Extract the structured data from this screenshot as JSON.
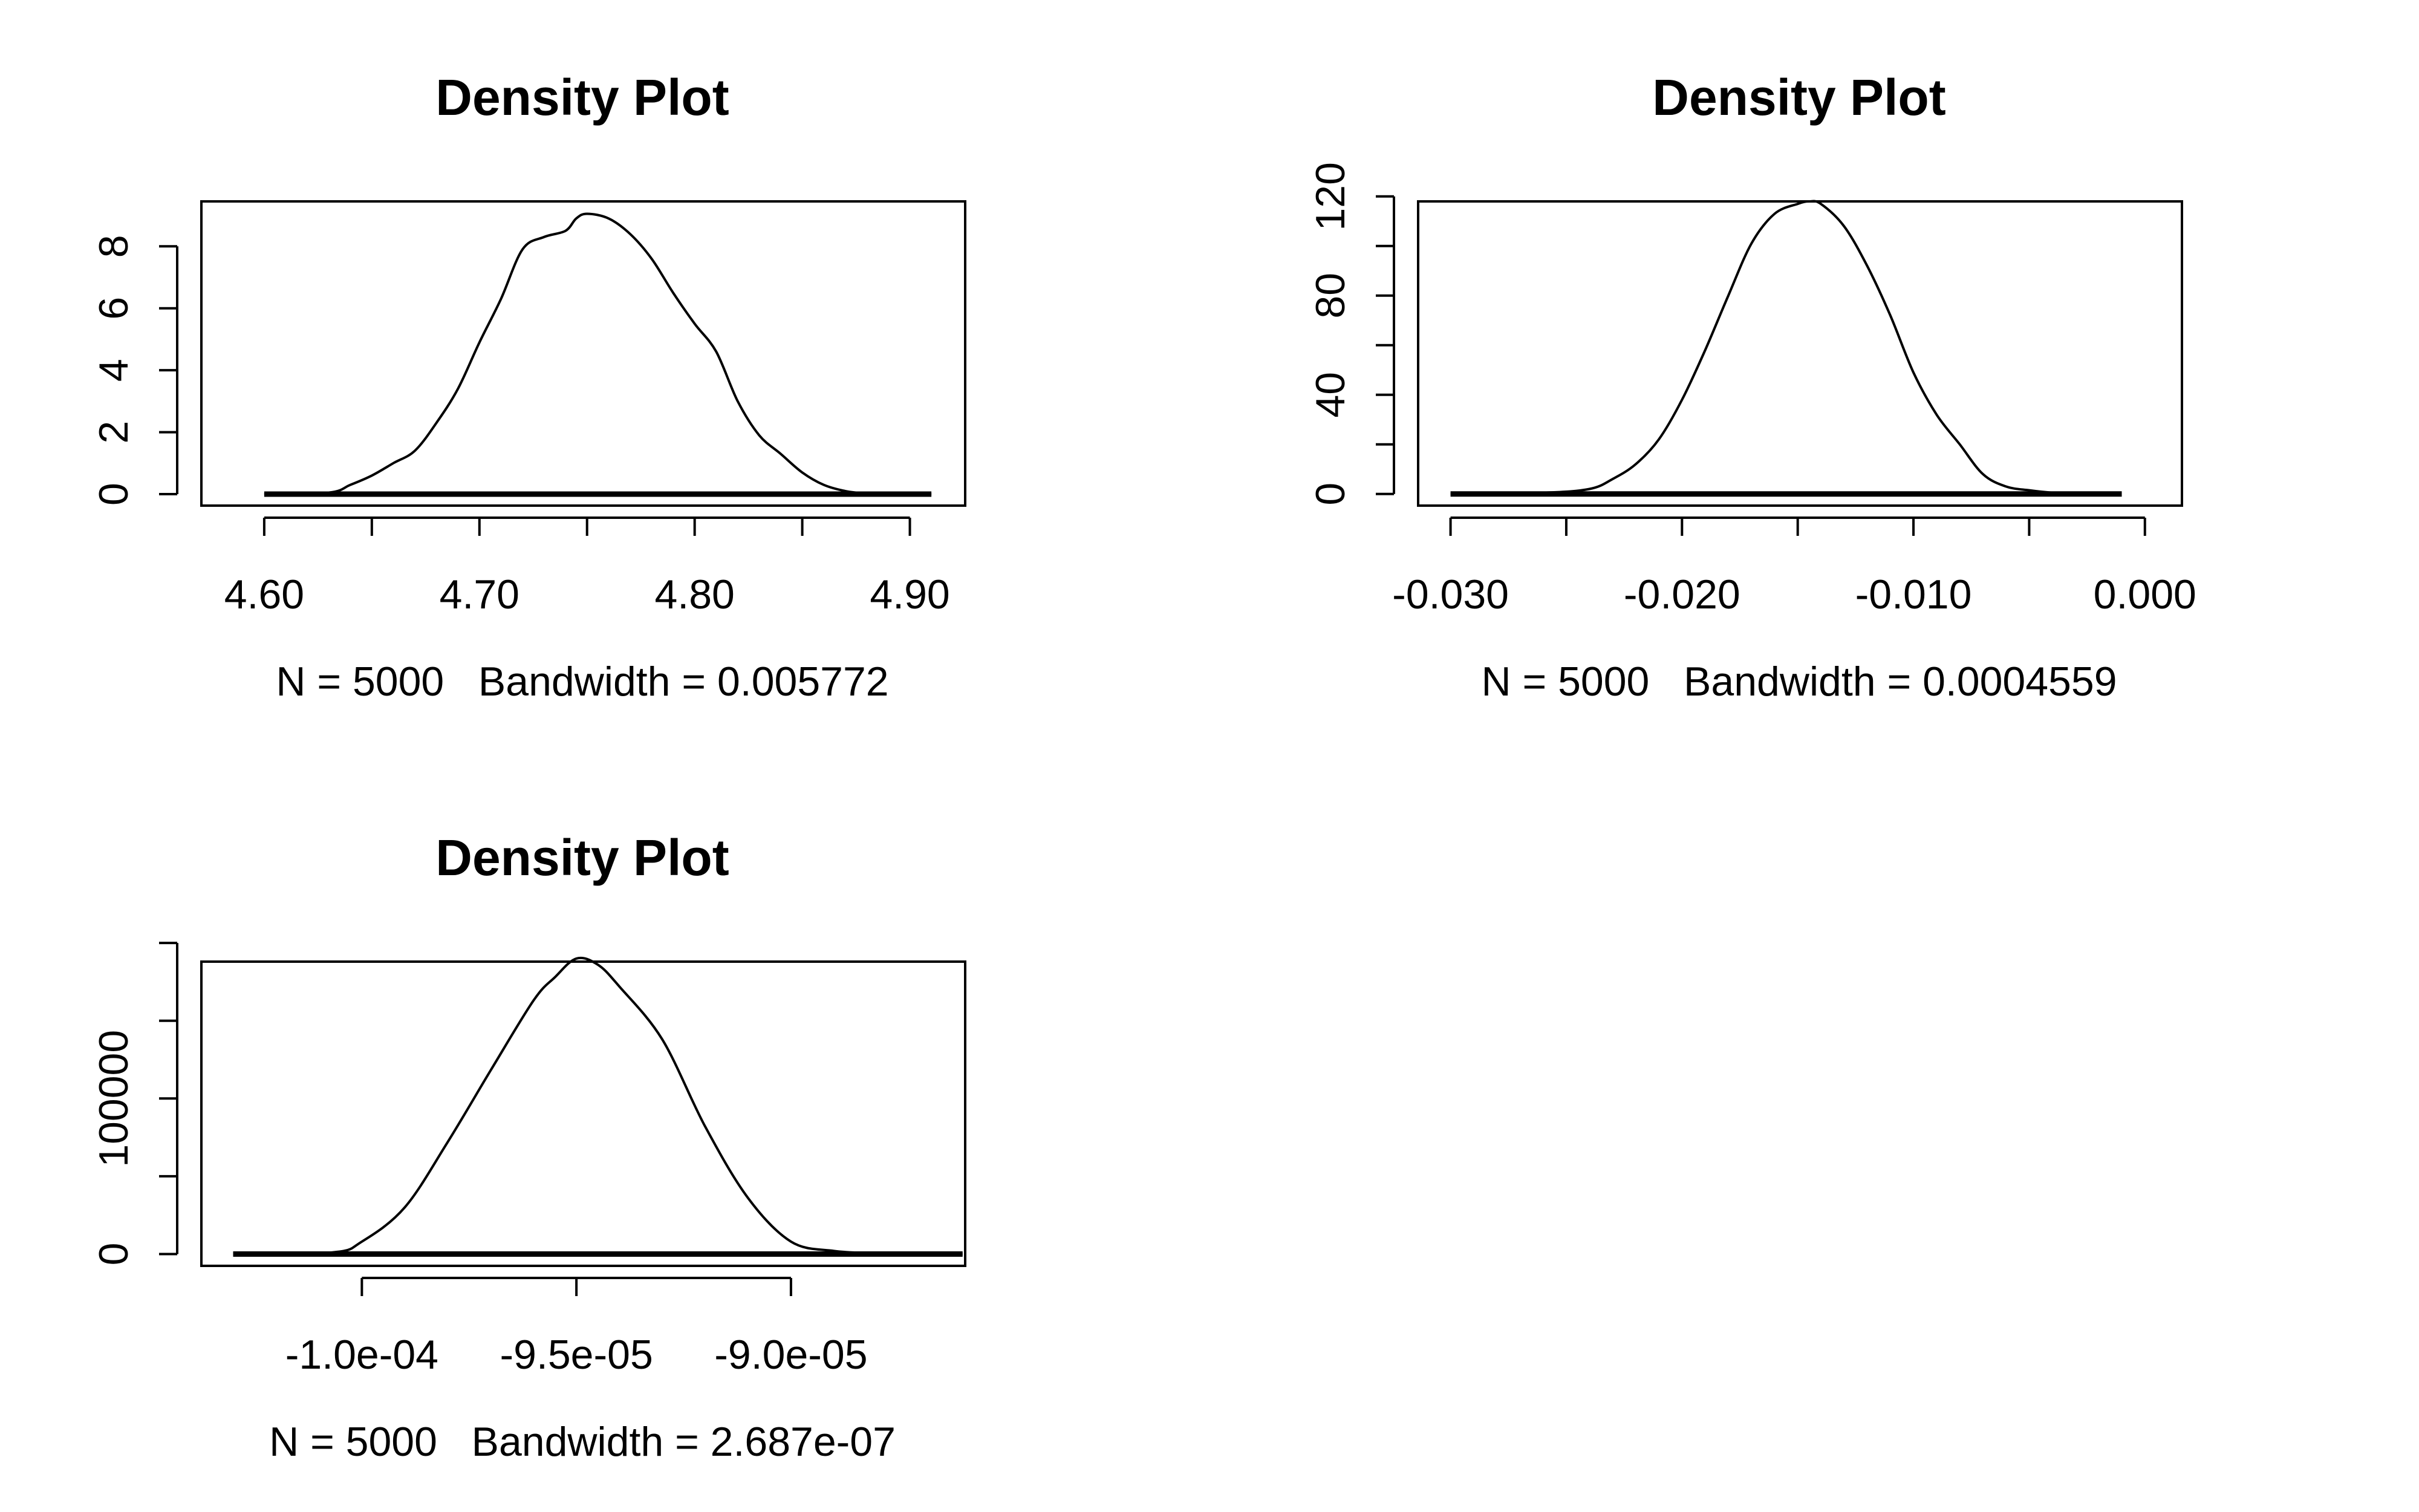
{
  "chart_data": [
    {
      "type": "line",
      "title": "Density Plot",
      "xlabel": "N = 5000   Bandwidth = 0.005772",
      "ylabel": "",
      "xlim": [
        4.5708,
        4.9257
      ],
      "ylim": [
        -0.37,
        9.45
      ],
      "x_ticks": [
        4.6,
        4.65,
        4.7,
        4.75,
        4.8,
        4.85,
        4.9
      ],
      "x_tick_labels": [
        "4.60",
        "",
        "4.70",
        "",
        "4.80",
        "",
        "4.90"
      ],
      "y_ticks": [
        0,
        2,
        4,
        6,
        8
      ],
      "y_tick_labels": [
        "0",
        "2",
        "4",
        "6",
        "8"
      ],
      "grid": false,
      "series": [
        {
          "x": [
            4.6,
            4.63,
            4.64,
            4.65,
            4.66,
            4.67,
            4.68,
            4.69,
            4.7,
            4.71,
            4.72,
            4.73,
            4.74,
            4.745,
            4.75,
            4.76,
            4.77,
            4.78,
            4.79,
            4.8,
            4.81,
            4.82,
            4.83,
            4.84,
            4.85,
            4.86,
            4.87,
            4.88,
            4.89,
            4.91
          ],
          "y": [
            0.0,
            0.05,
            0.3,
            0.6,
            1.0,
            1.4,
            2.3,
            3.4,
            4.9,
            6.3,
            7.9,
            8.3,
            8.5,
            8.9,
            9.05,
            8.9,
            8.4,
            7.6,
            6.5,
            5.5,
            4.6,
            3.0,
            1.9,
            1.3,
            0.7,
            0.3,
            0.1,
            0.02,
            0.0,
            0.0
          ]
        }
      ]
    },
    {
      "type": "line",
      "title": "Density Plot",
      "xlabel": "N = 5000   Bandwidth = 0.0004559",
      "ylabel": "",
      "xlim": [
        -0.0314,
        0.0016
      ],
      "ylim": [
        -4.7,
        118.0
      ],
      "x_ticks": [
        -0.03,
        -0.025,
        -0.02,
        -0.015,
        -0.01,
        -0.005,
        0.0
      ],
      "x_tick_labels": [
        "-0.030",
        "",
        "-0.020",
        "",
        "-0.010",
        "",
        "0.000"
      ],
      "y_ticks": [
        0,
        20,
        40,
        60,
        80,
        100,
        120
      ],
      "y_tick_labels": [
        "0",
        "",
        "40",
        "",
        "80",
        "",
        "120"
      ],
      "grid": false,
      "series": [
        {
          "x": [
            -0.03,
            -0.026,
            -0.024,
            -0.023,
            -0.022,
            -0.021,
            -0.02,
            -0.019,
            -0.018,
            -0.017,
            -0.016,
            -0.015,
            -0.0145,
            -0.014,
            -0.013,
            -0.012,
            -0.011,
            -0.01,
            -0.009,
            -0.008,
            -0.007,
            -0.006,
            -0.005,
            -0.004,
            -0.003,
            -0.001
          ],
          "y": [
            0,
            0.5,
            2,
            6,
            12,
            22,
            38,
            58,
            80,
            101,
            113,
            117,
            118,
            117,
            108,
            92,
            72,
            49,
            32,
            20,
            8,
            3,
            1.5,
            0.5,
            0.1,
            0
          ]
        }
      ]
    },
    {
      "type": "line",
      "title": "Density Plot",
      "xlabel": "N = 5000   Bandwidth = 2.687e-07",
      "ylabel": "",
      "xlim": [
        -0.00010374,
        -8.594e-05
      ],
      "ylim": [
        -7600,
        188000
      ],
      "x_ticks": [
        -0.0001,
        -9.5e-05,
        -9e-05
      ],
      "x_tick_labels": [
        "-1.0e-04",
        "-9.5e-05",
        "-9.0e-05"
      ],
      "y_ticks": [
        0,
        50000,
        100000,
        150000,
        200000
      ],
      "y_tick_labels": [
        "0",
        "",
        "100000",
        "",
        ""
      ],
      "grid": false,
      "series": [
        {
          "x": [
            -0.000103,
            -0.0001007,
            -0.0001,
            -9.9e-05,
            -9.8e-05,
            -9.7e-05,
            -9.6e-05,
            -9.55e-05,
            -9.5e-05,
            -9.45e-05,
            -9.4e-05,
            -9.3e-05,
            -9.2e-05,
            -9.1e-05,
            -9e-05,
            -8.9e-05,
            -8.8e-05,
            -8.7e-05,
            -8.6e-05
          ],
          "y": [
            0,
            1000,
            8000,
            30000,
            72000,
            118000,
            163000,
            178000,
            190000,
            186000,
            172000,
            138000,
            82000,
            36000,
            8000,
            2000,
            500,
            0,
            0
          ]
        }
      ]
    }
  ]
}
